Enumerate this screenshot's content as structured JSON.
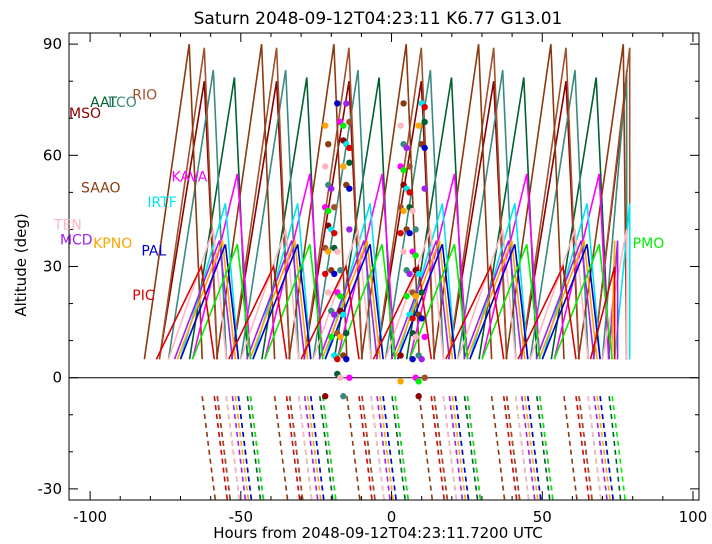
{
  "title": "Saturn 2048-09-12T04:23:11  K6.77  G13.01",
  "chart_data": {
    "type": "line",
    "xlabel": "Hours from 2048-09-12T04:23:11.7200 UTC",
    "ylabel": "Altitude (deg)",
    "xlim": [
      -107,
      102
    ],
    "ylim": [
      -33,
      93
    ],
    "xticks": [
      -100,
      -50,
      0,
      50,
      100
    ],
    "yticks": [
      -30,
      0,
      30,
      60,
      90
    ],
    "zero_line": 0,
    "observatories": [
      {
        "name": "MSO",
        "color": "#8b0000",
        "label_x": -107,
        "label_y": 70,
        "start": -77,
        "period": 24.0,
        "peak": 80,
        "end": 78
      },
      {
        "name": "AAT",
        "color": "#006030",
        "label_x": -100,
        "label_y": 73,
        "start": -67,
        "period": 24.0,
        "peak": 81,
        "end": 76
      },
      {
        "name": "LCO",
        "color": "#3a8a80",
        "label_x": -94,
        "label_y": 73,
        "start": -74,
        "period": 24.0,
        "peak": 83,
        "end": 78
      },
      {
        "name": "RIO",
        "color": "#a0522d",
        "label_x": -86,
        "label_y": 75,
        "start": -77,
        "period": 24.0,
        "peak": 89,
        "end": 79
      },
      {
        "name": "SAAO",
        "color": "#8b3a0f",
        "label_x": -103,
        "label_y": 50,
        "start": -82,
        "period": 24.0,
        "peak": 90,
        "end": 78
      },
      {
        "name": "KAVA",
        "color": "#ff00ff",
        "label_x": -73,
        "label_y": 53,
        "start": -66,
        "period": 24.0,
        "peak": 55,
        "end": 72
      },
      {
        "name": "IRTF",
        "color": "#00e5ee",
        "label_x": -81,
        "label_y": 46,
        "start": -70,
        "period": 24.0,
        "peak": 47,
        "end": 79
      },
      {
        "name": "TEN",
        "color": "#ffb6c1",
        "label_x": -112,
        "label_y": 40,
        "start": -74,
        "period": 24.0,
        "peak": 40,
        "end": 78
      },
      {
        "name": "MCD",
        "color": "#a020f0",
        "label_x": -110,
        "label_y": 36,
        "start": -72,
        "period": 24.0,
        "peak": 37,
        "end": 75
      },
      {
        "name": "KPNO",
        "color": "#ffa500",
        "label_x": -99,
        "label_y": 35,
        "start": -71,
        "period": 24.0,
        "peak": 37,
        "end": 74
      },
      {
        "name": "PAL",
        "color": "#0000cd",
        "label_x": -83,
        "label_y": 33,
        "start": -70,
        "period": 24.0,
        "peak": 36,
        "end": 74
      },
      {
        "name": "PMO",
        "color": "#00ee00",
        "label_x": 80,
        "label_y": 35,
        "start": -66,
        "period": 24.0,
        "peak": 36,
        "end": 78
      },
      {
        "name": "PIC",
        "color": "#dd0000",
        "label_x": -86,
        "label_y": 21,
        "start": -78,
        "period": 24.0,
        "peak": 30,
        "end": 74
      }
    ]
  }
}
